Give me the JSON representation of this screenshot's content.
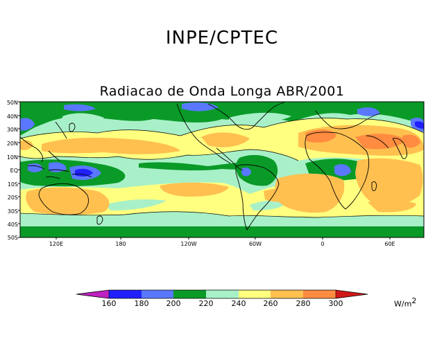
{
  "header": {
    "org_title": "INPE/CPTEC"
  },
  "map": {
    "title": "Radiacao de Onda Longa ABR/2001",
    "lat_labels": [
      "50N",
      "40N",
      "30N",
      "20N",
      "10N",
      "EQ",
      "10S",
      "20S",
      "30S",
      "40S",
      "50S"
    ],
    "lon_labels": [
      "120E",
      "180",
      "120W",
      "60W",
      "0",
      "60E"
    ],
    "colors": {
      "below_160": "#c020c0",
      "160_180": "#2020ff",
      "180_200": "#5a78ff",
      "200_220": "#0a9a28",
      "220_240": "#a8f0c8",
      "240_260": "#ffff80",
      "260_280": "#ffc050",
      "280_300": "#ff8c40",
      "above_300": "#d01818",
      "coast": "#000000"
    }
  },
  "colorbar": {
    "labels": [
      "160",
      "180",
      "200",
      "220",
      "240",
      "260",
      "280",
      "300"
    ],
    "units": "W/m",
    "units_exp": "2"
  }
}
